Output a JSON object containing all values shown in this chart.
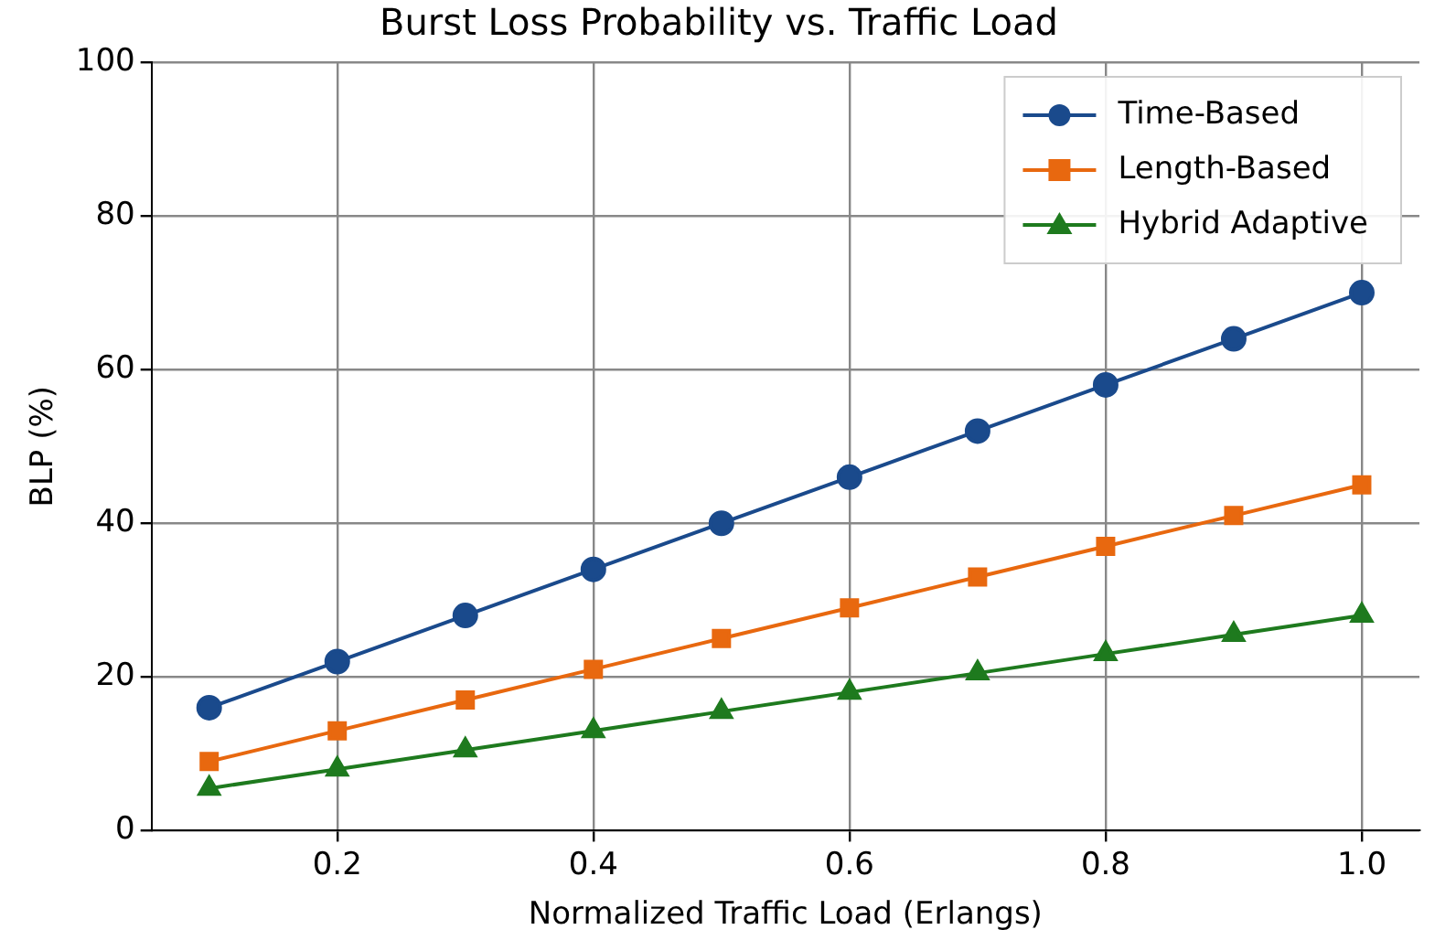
{
  "chart_data": {
    "type": "line",
    "title": "Burst Loss Probability vs. Traffic Load",
    "xlabel": "Normalized Traffic Load (Erlangs)",
    "ylabel": "BLP (%)",
    "x": [
      0.1,
      0.2,
      0.3,
      0.4,
      0.5,
      0.6,
      0.7,
      0.8,
      0.9,
      1.0
    ],
    "series": [
      {
        "name": "Time-Based",
        "color": "#1a4a8c",
        "marker": "circle",
        "values": [
          16,
          22,
          28,
          34,
          40,
          46,
          52,
          58,
          64,
          70
        ]
      },
      {
        "name": "Length-Based",
        "color": "#e8680f",
        "marker": "square",
        "values": [
          9,
          13,
          17,
          21,
          25,
          29,
          33,
          37,
          41,
          45
        ]
      },
      {
        "name": "Hybrid Adaptive",
        "color": "#1e7a1e",
        "marker": "triangle",
        "values": [
          5.5,
          8,
          10.5,
          13,
          15.5,
          18,
          20.5,
          23,
          25.5,
          28
        ]
      }
    ],
    "xlim": [
      0.055,
      1.045
    ],
    "xticks": [
      {
        "value": 0.2,
        "label": "0.2"
      },
      {
        "value": 0.4,
        "label": "0.4"
      },
      {
        "value": 0.6,
        "label": "0.6"
      },
      {
        "value": 0.8,
        "label": "0.8"
      },
      {
        "value": 1.0,
        "label": "1.0"
      }
    ],
    "ylim": [
      0,
      100
    ],
    "yticks": [
      0,
      20,
      40,
      60,
      80,
      100
    ],
    "grid": true,
    "legend": "top right",
    "line_style": "solid"
  }
}
